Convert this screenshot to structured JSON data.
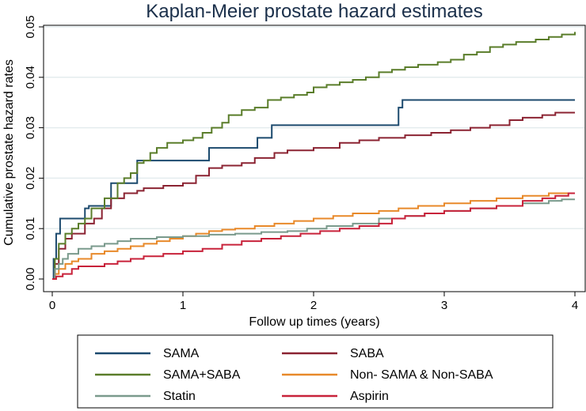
{
  "chart_data": {
    "type": "line",
    "step": true,
    "title": "Kaplan-Meier prostate hazard estimates",
    "xlabel": "Follow up times (years)",
    "ylabel": "Cumulative prostate hazard rates",
    "xlim": [
      0,
      4
    ],
    "ylim": [
      0,
      0.05
    ],
    "x_ticks": [
      0,
      1,
      2,
      3,
      4
    ],
    "x_tick_labels": [
      "0",
      "1",
      "2",
      "3",
      "4"
    ],
    "y_ticks": [
      0,
      0.01,
      0.02,
      0.03,
      0.04,
      0.05
    ],
    "y_tick_labels": [
      "0.00",
      "0.01",
      "0.02",
      "0.03",
      "0.04",
      "0.05"
    ],
    "grid": true,
    "legend_position": "bottom",
    "series": [
      {
        "name": "SAMA",
        "color": "#1c4a6e",
        "points": [
          [
            0,
            0
          ],
          [
            0.01,
            0.004
          ],
          [
            0.03,
            0.009
          ],
          [
            0.06,
            0.012
          ],
          [
            0.25,
            0.014
          ],
          [
            0.28,
            0.0145
          ],
          [
            0.45,
            0.019
          ],
          [
            0.65,
            0.0235
          ],
          [
            1.2,
            0.026
          ],
          [
            1.57,
            0.028
          ],
          [
            1.68,
            0.0305
          ],
          [
            2.65,
            0.034
          ],
          [
            2.68,
            0.0355
          ],
          [
            4.0,
            0.0355
          ]
        ]
      },
      {
        "name": "SABA",
        "color": "#8b2332",
        "points": [
          [
            0,
            0
          ],
          [
            0.02,
            0.003
          ],
          [
            0.05,
            0.006
          ],
          [
            0.1,
            0.008
          ],
          [
            0.15,
            0.009
          ],
          [
            0.25,
            0.011
          ],
          [
            0.32,
            0.012
          ],
          [
            0.38,
            0.014
          ],
          [
            0.45,
            0.016
          ],
          [
            0.55,
            0.017
          ],
          [
            0.65,
            0.0175
          ],
          [
            0.7,
            0.018
          ],
          [
            0.85,
            0.0185
          ],
          [
            1.0,
            0.019
          ],
          [
            1.1,
            0.0205
          ],
          [
            1.2,
            0.022
          ],
          [
            1.3,
            0.0225
          ],
          [
            1.45,
            0.023
          ],
          [
            1.55,
            0.024
          ],
          [
            1.7,
            0.025
          ],
          [
            1.8,
            0.0255
          ],
          [
            2.0,
            0.026
          ],
          [
            2.2,
            0.027
          ],
          [
            2.35,
            0.0275
          ],
          [
            2.5,
            0.028
          ],
          [
            2.7,
            0.0285
          ],
          [
            2.9,
            0.029
          ],
          [
            3.05,
            0.0295
          ],
          [
            3.2,
            0.03
          ],
          [
            3.35,
            0.0305
          ],
          [
            3.5,
            0.0315
          ],
          [
            3.6,
            0.032
          ],
          [
            3.75,
            0.0325
          ],
          [
            3.85,
            0.033
          ],
          [
            4.0,
            0.033
          ]
        ]
      },
      {
        "name": "SAMA+SABA",
        "color": "#5a7d2a",
        "points": [
          [
            0,
            0
          ],
          [
            0.02,
            0.004
          ],
          [
            0.05,
            0.007
          ],
          [
            0.1,
            0.009
          ],
          [
            0.15,
            0.01
          ],
          [
            0.2,
            0.011
          ],
          [
            0.25,
            0.012
          ],
          [
            0.3,
            0.014
          ],
          [
            0.4,
            0.016
          ],
          [
            0.5,
            0.019
          ],
          [
            0.55,
            0.02
          ],
          [
            0.6,
            0.021
          ],
          [
            0.65,
            0.023
          ],
          [
            0.7,
            0.0235
          ],
          [
            0.75,
            0.025
          ],
          [
            0.8,
            0.026
          ],
          [
            0.88,
            0.027
          ],
          [
            1.0,
            0.0275
          ],
          [
            1.08,
            0.028
          ],
          [
            1.15,
            0.029
          ],
          [
            1.22,
            0.03
          ],
          [
            1.3,
            0.031
          ],
          [
            1.35,
            0.0325
          ],
          [
            1.45,
            0.0335
          ],
          [
            1.55,
            0.034
          ],
          [
            1.65,
            0.0355
          ],
          [
            1.75,
            0.036
          ],
          [
            1.85,
            0.0365
          ],
          [
            1.95,
            0.037
          ],
          [
            2.0,
            0.038
          ],
          [
            2.1,
            0.0385
          ],
          [
            2.2,
            0.039
          ],
          [
            2.3,
            0.0395
          ],
          [
            2.4,
            0.04
          ],
          [
            2.5,
            0.041
          ],
          [
            2.6,
            0.0415
          ],
          [
            2.7,
            0.042
          ],
          [
            2.8,
            0.0425
          ],
          [
            2.95,
            0.043
          ],
          [
            3.05,
            0.0435
          ],
          [
            3.15,
            0.0445
          ],
          [
            3.25,
            0.045
          ],
          [
            3.35,
            0.046
          ],
          [
            3.45,
            0.0465
          ],
          [
            3.55,
            0.047
          ],
          [
            3.7,
            0.0475
          ],
          [
            3.8,
            0.048
          ],
          [
            3.9,
            0.0485
          ],
          [
            4.0,
            0.049
          ]
        ]
      },
      {
        "name": "Non- SAMA & Non-SABA",
        "color": "#e8892a",
        "points": [
          [
            0,
            0
          ],
          [
            0.02,
            0.001
          ],
          [
            0.05,
            0.002
          ],
          [
            0.1,
            0.003
          ],
          [
            0.15,
            0.0035
          ],
          [
            0.2,
            0.004
          ],
          [
            0.3,
            0.005
          ],
          [
            0.4,
            0.0055
          ],
          [
            0.5,
            0.006
          ],
          [
            0.6,
            0.0065
          ],
          [
            0.7,
            0.007
          ],
          [
            0.8,
            0.0075
          ],
          [
            0.9,
            0.008
          ],
          [
            1.0,
            0.0085
          ],
          [
            1.1,
            0.009
          ],
          [
            1.2,
            0.0095
          ],
          [
            1.3,
            0.0098
          ],
          [
            1.4,
            0.01
          ],
          [
            1.55,
            0.0105
          ],
          [
            1.7,
            0.011
          ],
          [
            1.85,
            0.0115
          ],
          [
            2.0,
            0.012
          ],
          [
            2.15,
            0.0125
          ],
          [
            2.3,
            0.013
          ],
          [
            2.5,
            0.0135
          ],
          [
            2.65,
            0.014
          ],
          [
            2.8,
            0.0145
          ],
          [
            3.0,
            0.015
          ],
          [
            3.2,
            0.0155
          ],
          [
            3.4,
            0.016
          ],
          [
            3.6,
            0.0165
          ],
          [
            3.8,
            0.017
          ],
          [
            4.0,
            0.017
          ]
        ]
      },
      {
        "name": "Statin",
        "color": "#7a9a8c",
        "points": [
          [
            0,
            0
          ],
          [
            0.02,
            0.002
          ],
          [
            0.05,
            0.003
          ],
          [
            0.08,
            0.004
          ],
          [
            0.12,
            0.005
          ],
          [
            0.2,
            0.006
          ],
          [
            0.3,
            0.0065
          ],
          [
            0.4,
            0.007
          ],
          [
            0.5,
            0.0075
          ],
          [
            0.6,
            0.008
          ],
          [
            0.8,
            0.0083
          ],
          [
            1.0,
            0.0085
          ],
          [
            1.2,
            0.0088
          ],
          [
            1.4,
            0.009
          ],
          [
            1.6,
            0.0093
          ],
          [
            1.8,
            0.0095
          ],
          [
            1.95,
            0.01
          ],
          [
            2.1,
            0.0105
          ],
          [
            2.3,
            0.011
          ],
          [
            2.5,
            0.012
          ],
          [
            2.7,
            0.0125
          ],
          [
            2.85,
            0.013
          ],
          [
            3.0,
            0.0135
          ],
          [
            3.2,
            0.014
          ],
          [
            3.4,
            0.0145
          ],
          [
            3.6,
            0.015
          ],
          [
            3.8,
            0.0155
          ],
          [
            3.9,
            0.0158
          ],
          [
            4.0,
            0.0158
          ]
        ]
      },
      {
        "name": "Aspirin",
        "color": "#c8223a",
        "points": [
          [
            0,
            0
          ],
          [
            0.03,
            0.0005
          ],
          [
            0.08,
            0.001
          ],
          [
            0.15,
            0.002
          ],
          [
            0.2,
            0.0025
          ],
          [
            0.4,
            0.003
          ],
          [
            0.5,
            0.0035
          ],
          [
            0.6,
            0.004
          ],
          [
            0.7,
            0.0045
          ],
          [
            0.85,
            0.005
          ],
          [
            1.0,
            0.0055
          ],
          [
            1.15,
            0.006
          ],
          [
            1.3,
            0.0068
          ],
          [
            1.45,
            0.0075
          ],
          [
            1.6,
            0.008
          ],
          [
            1.75,
            0.0085
          ],
          [
            1.9,
            0.009
          ],
          [
            2.05,
            0.0095
          ],
          [
            2.2,
            0.01
          ],
          [
            2.35,
            0.0105
          ],
          [
            2.5,
            0.011
          ],
          [
            2.6,
            0.012
          ],
          [
            2.7,
            0.0125
          ],
          [
            2.85,
            0.013
          ],
          [
            3.0,
            0.0135
          ],
          [
            3.2,
            0.014
          ],
          [
            3.4,
            0.0145
          ],
          [
            3.6,
            0.0155
          ],
          [
            3.75,
            0.016
          ],
          [
            3.85,
            0.0165
          ],
          [
            3.95,
            0.017
          ],
          [
            4.0,
            0.017
          ]
        ]
      }
    ]
  }
}
